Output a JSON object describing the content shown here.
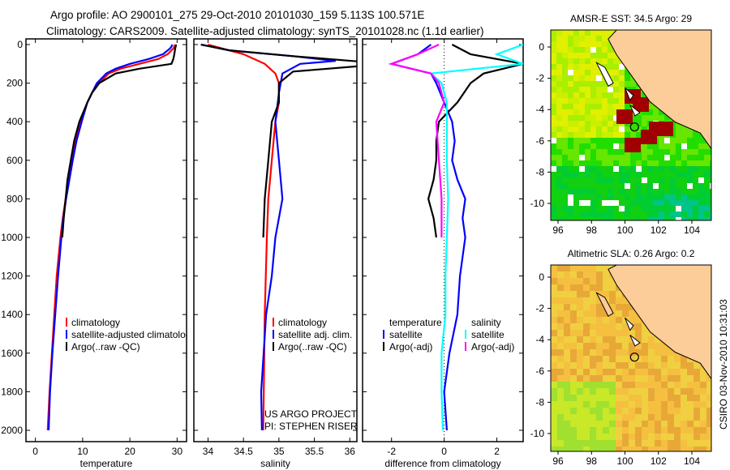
{
  "title_line1": "Argo profile: AO 2900101_275 29-Oct-2010 20101030_159 5.113S 100.571E",
  "title_line2": "Climatology: CARS2009. Satellite-adjusted climatology: synTS_20101028.nc (1.1d earlier)",
  "colors": {
    "climatology": "#ff0000",
    "satellite": "#0000ff",
    "argo": "#000000",
    "sal_satellite": "#00ffff",
    "sal_argo": "#ff00ff",
    "land": "#fccc99"
  },
  "chart_data": [
    {
      "type": "line",
      "id": "temperature",
      "xlabel": "temperature",
      "ylabel": "",
      "xlim": [
        -2,
        32
      ],
      "ylim": [
        2000,
        0
      ],
      "xticks": [
        0,
        10,
        20,
        30
      ],
      "yticks": [
        0,
        200,
        400,
        600,
        800,
        1000,
        1200,
        1400,
        1600,
        1800,
        2000
      ],
      "legend": [
        "climatology",
        "satellite-adjusted climatology",
        "Argo(..raw -QC)"
      ],
      "series": [
        {
          "name": "climatology",
          "color": "#ff0000",
          "depth": [
            0,
            10,
            20,
            50,
            75,
            100,
            125,
            150,
            200,
            250,
            300,
            400,
            500,
            600,
            700,
            800,
            900,
            1000,
            1200,
            1400,
            1600,
            1800,
            2000
          ],
          "values": [
            29.5,
            29.4,
            29.2,
            28,
            26,
            22,
            18,
            15.5,
            13.5,
            12,
            11,
            9.5,
            8.5,
            7.8,
            7,
            6.4,
            5.8,
            5.3,
            4.5,
            4,
            3.5,
            3,
            2.6
          ]
        },
        {
          "name": "satellite-adjusted climatology",
          "color": "#0000ff",
          "depth": [
            0,
            10,
            20,
            50,
            75,
            100,
            125,
            150,
            200,
            250,
            300,
            400,
            500,
            600,
            700,
            800,
            900,
            1000,
            1200,
            1400,
            1600,
            1800,
            2000
          ],
          "values": [
            29,
            28.8,
            28.5,
            27,
            24,
            20,
            17,
            15,
            13,
            12,
            11,
            9.8,
            8.7,
            7.9,
            7.2,
            6.5,
            5.9,
            5.5,
            4.8,
            4.2,
            3.6,
            3.1,
            2.8
          ]
        },
        {
          "name": "Argo(..raw -QC)",
          "color": "#000000",
          "depth": [
            0,
            10,
            20,
            50,
            75,
            100,
            125,
            150,
            200,
            250,
            300,
            400,
            500,
            600,
            700,
            800,
            900,
            1000
          ],
          "values": [
            29.8,
            29.7,
            29.6,
            29.4,
            29.2,
            28.8,
            22,
            17,
            13.5,
            12,
            11,
            9.3,
            8.2,
            7.5,
            6.8,
            6.4,
            6,
            5.7
          ]
        }
      ]
    },
    {
      "type": "line",
      "id": "salinity",
      "xlabel": "salinity",
      "xlim": [
        33.8,
        36.1
      ],
      "ylim": [
        2000,
        0
      ],
      "xticks": [
        34,
        34.5,
        35,
        35.5,
        36
      ],
      "legend": [
        "climatology",
        "satellite adj. clim.",
        "Argo(..raw -QC)"
      ],
      "annotation": [
        "US ARGO PROJECT",
        "PI: STEPHEN RISER"
      ],
      "series": [
        {
          "name": "climatology",
          "color": "#ff0000",
          "depth": [
            0,
            20,
            50,
            100,
            150,
            200,
            300,
            400,
            600,
            800,
            1000,
            1400,
            2000
          ],
          "values": [
            34.0,
            34.2,
            34.5,
            34.8,
            34.95,
            35.0,
            35.0,
            34.95,
            34.9,
            34.85,
            34.83,
            34.8,
            34.78
          ]
        },
        {
          "name": "satellite adj. clim.",
          "color": "#0000ff",
          "depth": [
            0,
            30,
            60,
            85,
            100,
            150,
            250,
            400,
            600,
            800,
            1000,
            1200,
            1400,
            1800,
            2000
          ],
          "values": [
            33.9,
            34.3,
            35.2,
            35.8,
            35.3,
            35.05,
            35.0,
            34.95,
            35.0,
            35.05,
            34.95,
            34.9,
            34.82,
            34.75,
            34.76
          ]
        },
        {
          "name": "Argo(..raw -QC)",
          "color": "#000000",
          "depth": [
            0,
            30,
            60,
            90,
            110,
            140,
            200,
            300,
            400,
            600,
            800,
            1000
          ],
          "values": [
            33.9,
            34.3,
            35.2,
            36.2,
            36.2,
            35.2,
            35.0,
            35.0,
            34.9,
            34.85,
            34.8,
            34.78
          ]
        }
      ]
    },
    {
      "type": "line",
      "id": "difference",
      "xlabel": "difference from climatology",
      "xlim": [
        -3.1,
        3
      ],
      "ylim": [
        2000,
        0
      ],
      "xticks": [
        -2,
        0,
        2
      ],
      "legend_left": {
        "title": "temperature",
        "items": [
          "satellite",
          "Argo(-adj)"
        ]
      },
      "legend_right": {
        "title": "salinity",
        "items": [
          "satellite",
          "Argo(-adj)"
        ]
      },
      "series": [
        {
          "name": "temperature satellite",
          "color": "#0000ff",
          "depth": [
            0,
            50,
            100,
            150,
            200,
            300,
            400,
            500,
            600,
            700,
            800,
            900,
            1000,
            1200,
            1400,
            1600,
            1800,
            2000
          ],
          "values": [
            -0.5,
            -1,
            -2,
            -0.5,
            -0.3,
            0,
            0.3,
            0.4,
            0.3,
            0.5,
            0.8,
            0.7,
            0.8,
            0.6,
            0.5,
            0.2,
            0,
            0.1
          ]
        },
        {
          "name": "temperature Argo(-adj)",
          "color": "#000000",
          "depth": [
            0,
            50,
            100,
            150,
            200,
            300,
            400,
            500,
            600,
            700,
            800,
            900,
            1000
          ],
          "values": [
            0.3,
            1,
            3,
            1.5,
            1,
            0.5,
            -0.2,
            -0.3,
            -0.3,
            -0.4,
            -0.6,
            -0.4,
            -0.3
          ]
        },
        {
          "name": "salinity satellite",
          "color": "#00ffff",
          "depth": [
            0,
            50,
            100,
            150,
            200,
            300,
            400,
            600,
            800,
            1000,
            1200,
            1400,
            1600,
            1800,
            2000
          ],
          "values": [
            3,
            2,
            3,
            -0.5,
            -0.1,
            0.1,
            0.1,
            0.1,
            0.15,
            0.1,
            0.05,
            0.05,
            -0.1,
            -0.1,
            -0.05
          ]
        },
        {
          "name": "salinity Argo(-adj)",
          "color": "#ff00ff",
          "depth": [
            0,
            50,
            100,
            150,
            200,
            300,
            400,
            500,
            600,
            700,
            800,
            900,
            1000
          ],
          "values": [
            -0.2,
            -1,
            -2,
            -0.5,
            -0.2,
            0,
            -0.3,
            -0.25,
            -0.2,
            -0.15,
            -0.1,
            -0.1,
            -0.1
          ]
        }
      ]
    },
    {
      "type": "heatmap",
      "id": "sst-map",
      "title": "AMSR-E SST: 34.5 Argo: 29",
      "xticks": [
        96,
        98,
        100,
        102,
        104
      ],
      "yticks": [
        0,
        -2,
        -4,
        -6,
        -8,
        -10
      ],
      "xlim": [
        95.5,
        105.7
      ],
      "ylim": [
        -11,
        1
      ],
      "marker": {
        "lon": 100.571,
        "lat": -5.113
      }
    },
    {
      "type": "heatmap",
      "id": "sla-map",
      "title": "Altimetric SLA: 0.26 Argo: 0.2",
      "xticks": [
        96,
        98,
        100,
        102,
        104
      ],
      "yticks": [
        0,
        -2,
        -4,
        -6,
        -8,
        -10
      ],
      "xlim": [
        95.5,
        105.7
      ],
      "ylim": [
        -11,
        1
      ],
      "marker": {
        "lon": 100.571,
        "lat": -5.113
      }
    }
  ],
  "footer": "CSIRO 03-Nov-2010 10:31:03"
}
